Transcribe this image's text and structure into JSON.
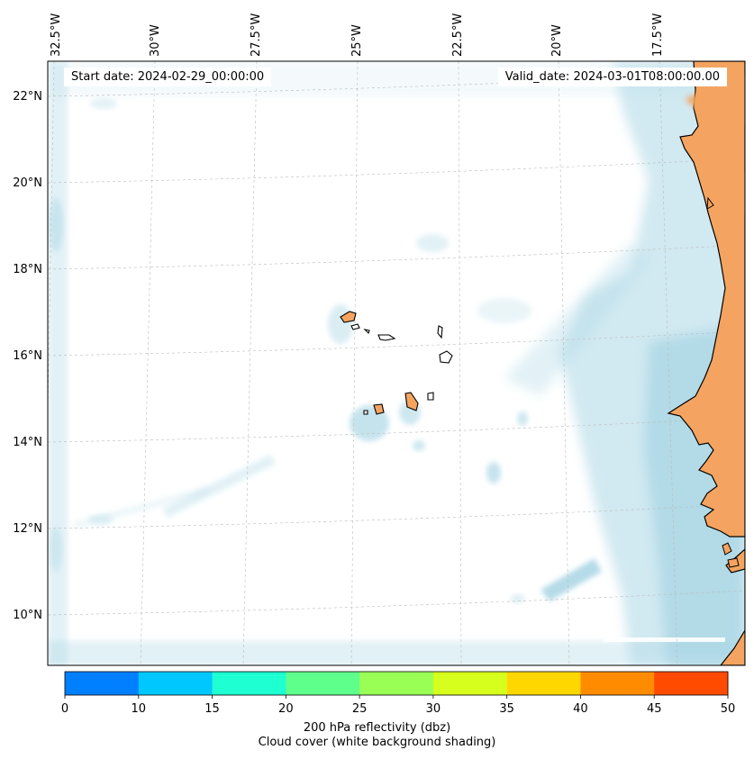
{
  "header": {
    "start_label": "Start date:",
    "start_value": "2024-02-29_00:00:00",
    "valid_label": "Valid_date:",
    "valid_value": "2024-03-01T08:00:00.00"
  },
  "axes": {
    "lon_labels": [
      "32.5°W",
      "30°W",
      "27.5°W",
      "25°W",
      "22.5°W",
      "20°W",
      "17.5°W"
    ],
    "lat_labels": [
      "22°N",
      "20°N",
      "18°N",
      "16°N",
      "14°N",
      "12°N",
      "10°N"
    ]
  },
  "colorbar": {
    "ticks": [
      "0",
      "10",
      "15",
      "20",
      "25",
      "30",
      "35",
      "40",
      "45",
      "50"
    ],
    "colors": [
      "#0080ff",
      "#00c8ff",
      "#1effd2",
      "#5fff8c",
      "#99ff55",
      "#d7ff1e",
      "#ffd700",
      "#ff8c00",
      "#ff4b00"
    ],
    "label": "200 hPa reflectivity (dbz)",
    "sublabel": "Cloud cover (white background shading)"
  },
  "legend_colors": {
    "land": "#f4a460",
    "cloud": "#add8e6",
    "coast": "#000000",
    "grid": "#bbbbbb"
  }
}
